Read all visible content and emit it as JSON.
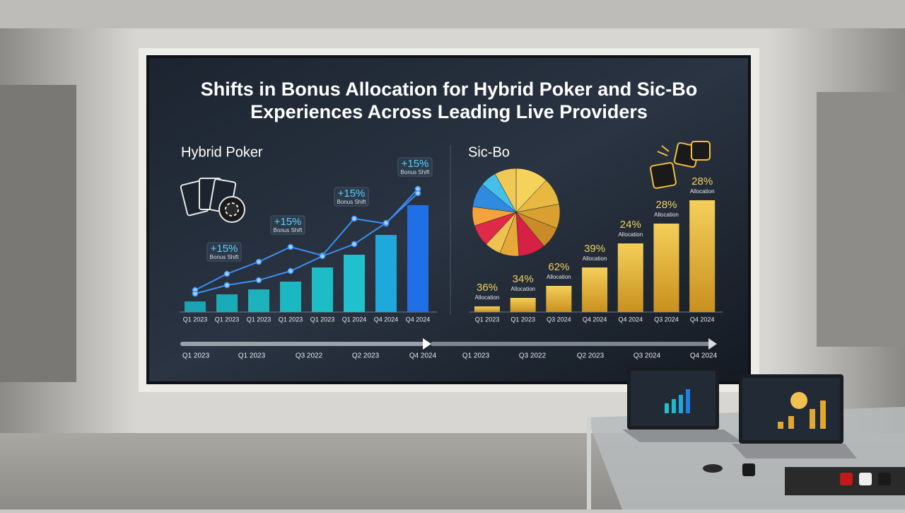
{
  "title_lines": [
    "Shifts in Bonus Allocation for Hybrid Poker and Sic-Bo",
    "Experiences Across Leading Live Providers"
  ],
  "chart_data": [
    {
      "type": "bar",
      "title": "Hybrid Poker",
      "categories": [
        "Q1 2023",
        "Q1 2023",
        "Q1 2023",
        "Q1 2023",
        "Q1 2023",
        "Q1 2024",
        "Q4 2024",
        "Q4 2024"
      ],
      "values": [
        15,
        25,
        32,
        43,
        63,
        81,
        109,
        151
      ],
      "colors": [
        "#1aa3b3",
        "#1aabb8",
        "#1cb3bd",
        "#1cb8c2",
        "#1dbdc6",
        "#1fc1cc",
        "#1fa8dc",
        "#1f6fe6"
      ],
      "ylim": [
        0,
        180
      ],
      "series": [
        {
          "color": "#3d8ff0",
          "values": [
            31,
            54,
            71,
            92,
            80,
            132,
            125,
            174
          ]
        },
        {
          "color": "#3d8ff0",
          "values": [
            26,
            38,
            45,
            58,
            79,
            96,
            126,
            168
          ]
        }
      ],
      "annotations": [
        {
          "text": "+15%",
          "note": "Bonus Shift"
        },
        {
          "text": "+15%",
          "note": "Bonus Shift"
        },
        {
          "text": "+15%",
          "note": "Bonus Shift"
        },
        {
          "text": "+15%",
          "note": "Bonus Shift"
        }
      ]
    },
    {
      "type": "pie",
      "title": "Sic-Bo",
      "values": [
        12,
        10,
        9,
        8,
        10,
        7,
        6,
        8,
        7,
        9,
        6,
        8
      ],
      "colors": [
        "#f5d35a",
        "#e8b840",
        "#d9a030",
        "#c98a28",
        "#d81f45",
        "#e8a838",
        "#f0c050",
        "#e02848",
        "#f4a23a",
        "#2f8ae0",
        "#45c0e8",
        "#f0c858"
      ]
    },
    {
      "type": "bar",
      "categories": [
        "Q1 2023",
        "Q1 2023",
        "Q3 2024",
        "Q4 2024",
        "Q4 2024",
        "Q3 2024",
        "Q4 2024"
      ],
      "values": [
        8,
        20,
        37,
        63,
        97,
        125,
        158
      ],
      "color": "#e0a830",
      "ylim": [
        0,
        180
      ],
      "annotations": [
        {
          "text": "36%",
          "note": "Allocation"
        },
        {
          "text": "34%",
          "note": "Allocation"
        },
        {
          "text": "62%",
          "note": "Allocation"
        },
        {
          "text": "39%",
          "note": "Allocation"
        },
        {
          "text": "24%",
          "note": "Allocation"
        },
        {
          "text": "28%",
          "note": "Allocation"
        },
        {
          "text": "28%",
          "note": "Allocation"
        }
      ]
    }
  ],
  "timeline": [
    "Q1 2023",
    "Q1 2023",
    "Q3 2022",
    "Q2 2023",
    "Q4 2024",
    "Q1 2023",
    "Q3 2022",
    "Q2 2023",
    "Q3 2024",
    "Q4 2024"
  ]
}
